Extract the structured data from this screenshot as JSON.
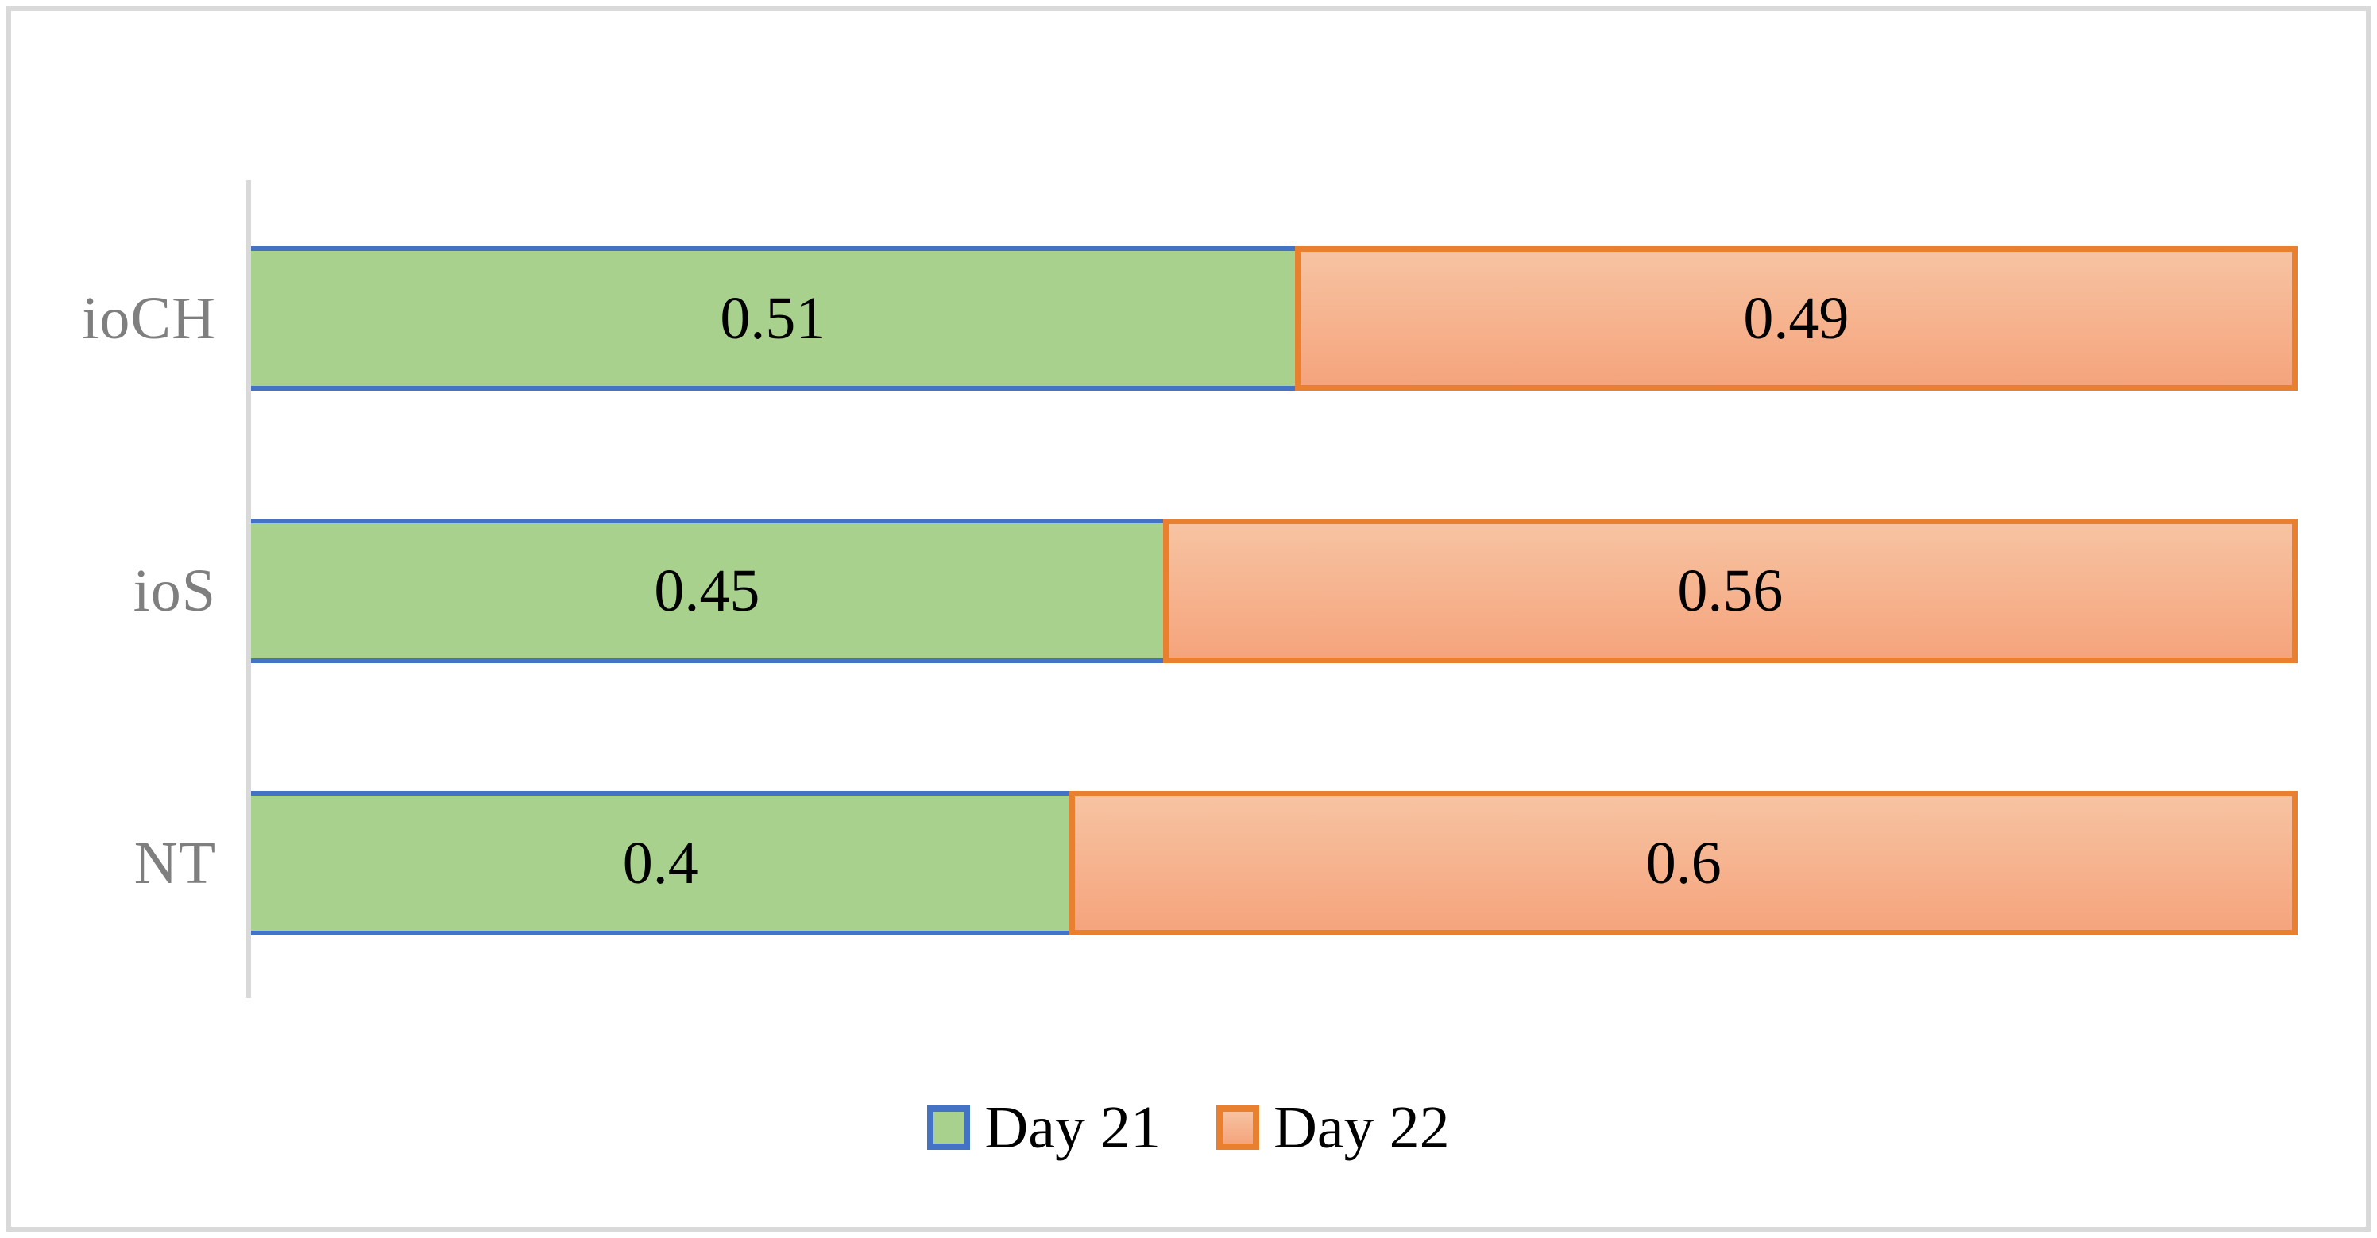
{
  "chart_data": {
    "type": "bar",
    "orientation": "horizontal",
    "stacked": true,
    "normalized_to_full_width": true,
    "title": "",
    "xlabel": "",
    "ylabel": "",
    "grid": false,
    "categories": [
      "ioCH",
      "ioS",
      "NT"
    ],
    "series": [
      {
        "name": "Day 21",
        "values": [
          0.51,
          0.45,
          0.4
        ],
        "labels": [
          "0.51",
          "0.45",
          "0.4"
        ]
      },
      {
        "name": "Day 22",
        "values": [
          0.49,
          0.56,
          0.6
        ],
        "labels": [
          "0.49",
          "0.56",
          "0.6"
        ]
      }
    ],
    "legend": {
      "position": "bottom",
      "entries": [
        "Day 21",
        "Day 22"
      ]
    }
  },
  "colors": {
    "day21_fill": "#A9D18E",
    "day21_border": "#4472C4",
    "day22_fill_top": "#F7C3A2",
    "day22_fill_bottom": "#F5A47C",
    "day22_border": "#E8802F",
    "axis_line": "#D9D9D9",
    "frame_border": "#D9D9D9",
    "category_label": "#7F7F7F",
    "value_label": "#000000",
    "background": "#FFFFFF"
  }
}
